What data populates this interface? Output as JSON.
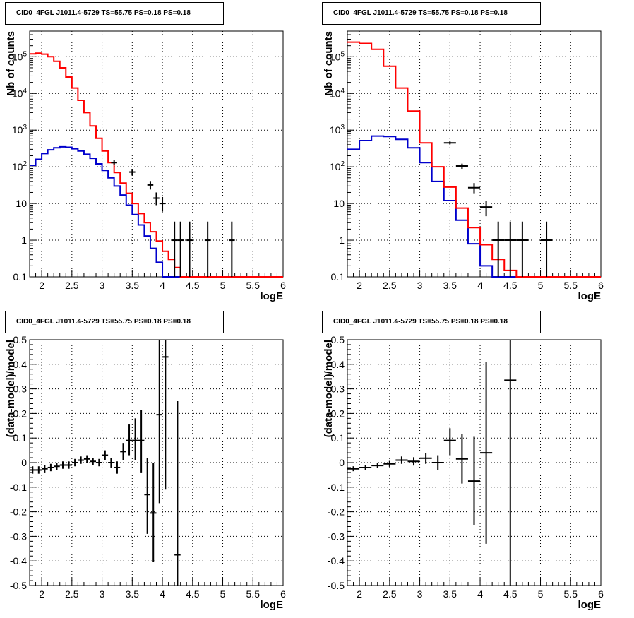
{
  "colors": {
    "data": "#000000",
    "total_model": "#ff0000",
    "component_model": "#0000cc",
    "grid": "#000000"
  },
  "chart_data": [
    {
      "type": "histogram",
      "title": "CID0_4FGL J1011.4-5729 TS=55.75 PS=0.18 PS=0.18",
      "xlabel": "logE",
      "ylabel": "Nb of counts",
      "xlim": [
        1.8,
        6.0
      ],
      "ylim": [
        0.1,
        500000
      ],
      "yscale": "log",
      "grid": true,
      "x_ticks": [
        "2",
        "2.5",
        "3",
        "3.5",
        "4",
        "4.5",
        "5",
        "5.5",
        "6"
      ],
      "y_ticks": [
        "0.1",
        "1",
        "10",
        "10^2",
        "10^3",
        "10^4",
        "10^5"
      ],
      "bin_edges": [
        1.8,
        1.9,
        2.0,
        2.1,
        2.2,
        2.3,
        2.4,
        2.5,
        2.6,
        2.7,
        2.8,
        2.9,
        3.0,
        3.1,
        3.2,
        3.3,
        3.4,
        3.5,
        3.6,
        3.7,
        3.8,
        3.9,
        4.0,
        4.1,
        4.2,
        4.3,
        4.4,
        4.5,
        4.6,
        4.7,
        4.8,
        4.9,
        5.0,
        5.1,
        5.2,
        5.3,
        5.4,
        5.5,
        5.6,
        5.7,
        5.8,
        5.9,
        6.0
      ],
      "series": [
        {
          "role": "total_model",
          "values": [
            120000,
            125000,
            118000,
            100000,
            75000,
            50000,
            28000,
            14000,
            6500,
            3000,
            1300,
            600,
            270,
            130,
            70,
            36,
            19,
            10,
            5.3,
            3.0,
            1.7,
            0.95,
            0.5,
            0.3,
            0.18,
            0.1,
            0.1,
            0.1,
            0.1,
            0.1,
            0.1,
            0.1,
            0.1,
            0.1,
            0.1,
            0.1,
            0.1,
            0.1,
            0.1,
            0.1,
            0.1,
            0.1
          ]
        },
        {
          "role": "component_model",
          "values": [
            110,
            160,
            230,
            290,
            330,
            350,
            340,
            310,
            270,
            220,
            170,
            120,
            80,
            50,
            30,
            17,
            9,
            5,
            2.6,
            1.3,
            0.6,
            0.25,
            0.1,
            0.1,
            0.1,
            0.1,
            0.1,
            0.1,
            0.1,
            0.1,
            0.1,
            0.1,
            0.1,
            0.1,
            0.1,
            0.1,
            0.1,
            0.1,
            0.1,
            0.1,
            0.1,
            0.1
          ]
        }
      ],
      "points": [
        {
          "x": 3.2,
          "y": 130,
          "xerr": 0.05,
          "ylo": 110,
          "yhi": 150
        },
        {
          "x": 3.5,
          "y": 72,
          "xerr": 0.05,
          "ylo": 58,
          "yhi": 88
        },
        {
          "x": 3.8,
          "y": 32,
          "xerr": 0.05,
          "ylo": 24,
          "yhi": 41
        },
        {
          "x": 3.9,
          "y": 14,
          "xerr": 0.05,
          "ylo": 9,
          "yhi": 20
        },
        {
          "x": 4.0,
          "y": 10,
          "xerr": 0.05,
          "ylo": 6,
          "yhi": 15
        },
        {
          "x": 4.2,
          "y": 1,
          "xerr": 0.05,
          "ylo": 0.1,
          "yhi": 3.2
        },
        {
          "x": 4.3,
          "y": 1,
          "xerr": 0.05,
          "ylo": 0.1,
          "yhi": 3.2
        },
        {
          "x": 4.45,
          "y": 1,
          "xerr": 0.05,
          "ylo": 0.1,
          "yhi": 3.2
        },
        {
          "x": 4.75,
          "y": 1,
          "xerr": 0.05,
          "ylo": 0.1,
          "yhi": 3.2
        },
        {
          "x": 5.15,
          "y": 1,
          "xerr": 0.05,
          "ylo": 0.1,
          "yhi": 3.2
        }
      ]
    },
    {
      "type": "histogram",
      "title": "CID0_4FGL J1011.4-5729 TS=55.75 PS=0.18 PS=0.18",
      "xlabel": "logE",
      "ylabel": "Nb of counts",
      "xlim": [
        1.8,
        6.0
      ],
      "ylim": [
        0.1,
        500000
      ],
      "yscale": "log",
      "grid": true,
      "x_ticks": [
        "2",
        "2.5",
        "3",
        "3.5",
        "4",
        "4.5",
        "5",
        "5.5",
        "6"
      ],
      "y_ticks": [
        "0.1",
        "1",
        "10",
        "10^2",
        "10^3",
        "10^4",
        "10^5"
      ],
      "bin_edges": [
        1.8,
        2.0,
        2.2,
        2.4,
        2.6,
        2.8,
        3.0,
        3.2,
        3.4,
        3.6,
        3.8,
        4.0,
        4.2,
        4.4,
        4.6,
        4.8,
        5.0,
        5.2,
        5.4,
        5.6,
        5.8,
        6.0
      ],
      "series": [
        {
          "role": "total_model",
          "values": [
            250000,
            230000,
            160000,
            55000,
            14000,
            3300,
            450,
            100,
            28,
            7.5,
            2.2,
            0.75,
            0.3,
            0.15,
            0.1,
            0.1,
            0.1,
            0.1,
            0.1,
            0.1,
            0.1
          ]
        },
        {
          "role": "component_model",
          "values": [
            300,
            520,
            690,
            670,
            560,
            330,
            130,
            40,
            12,
            3.5,
            0.8,
            0.2,
            0.1,
            0.1,
            0.1,
            0.1,
            0.1,
            0.1,
            0.1,
            0.1,
            0.1
          ]
        }
      ],
      "points": [
        {
          "x": 3.5,
          "y": 450,
          "xerr": 0.1,
          "ylo": 410,
          "yhi": 490
        },
        {
          "x": 3.7,
          "y": 105,
          "xerr": 0.1,
          "ylo": 88,
          "yhi": 122
        },
        {
          "x": 3.9,
          "y": 27,
          "xerr": 0.1,
          "ylo": 19,
          "yhi": 36
        },
        {
          "x": 4.1,
          "y": 8,
          "xerr": 0.1,
          "ylo": 4.5,
          "yhi": 12
        },
        {
          "x": 4.3,
          "y": 1,
          "xerr": 0.1,
          "ylo": 0.1,
          "yhi": 3.2
        },
        {
          "x": 4.5,
          "y": 1,
          "xerr": 0.1,
          "ylo": 0.1,
          "yhi": 3.2
        },
        {
          "x": 4.7,
          "y": 1,
          "xerr": 0.1,
          "ylo": 0.1,
          "yhi": 3.2
        },
        {
          "x": 5.1,
          "y": 1,
          "xerr": 0.1,
          "ylo": 0.1,
          "yhi": 3.2
        }
      ]
    },
    {
      "type": "scatter",
      "title": "CID0_4FGL J1011.4-5729 TS=55.75 PS=0.18 PS=0.18",
      "xlabel": "logE",
      "ylabel": "(data-model)/model",
      "xlim": [
        1.8,
        6.0
      ],
      "ylim": [
        -0.5,
        0.5
      ],
      "yscale": "linear",
      "grid": true,
      "x_ticks": [
        "2",
        "2.5",
        "3",
        "3.5",
        "4",
        "4.5",
        "5",
        "5.5",
        "6"
      ],
      "y_ticks": [
        "-0.5",
        "-0.4",
        "-0.3",
        "-0.2",
        "-0.1",
        "0",
        "0.1",
        "0.2",
        "0.3",
        "0.4",
        "0.5"
      ],
      "points": [
        {
          "x": 1.85,
          "y": -0.03,
          "xerr": 0.05,
          "ylo": -0.045,
          "yhi": -0.015
        },
        {
          "x": 1.95,
          "y": -0.03,
          "xerr": 0.05,
          "ylo": -0.045,
          "yhi": -0.015
        },
        {
          "x": 2.05,
          "y": -0.025,
          "xerr": 0.05,
          "ylo": -0.04,
          "yhi": -0.01
        },
        {
          "x": 2.15,
          "y": -0.02,
          "xerr": 0.05,
          "ylo": -0.035,
          "yhi": -0.005
        },
        {
          "x": 2.25,
          "y": -0.015,
          "xerr": 0.05,
          "ylo": -0.03,
          "yhi": 0.0
        },
        {
          "x": 2.35,
          "y": -0.01,
          "xerr": 0.05,
          "ylo": -0.025,
          "yhi": 0.005
        },
        {
          "x": 2.45,
          "y": -0.01,
          "xerr": 0.05,
          "ylo": -0.025,
          "yhi": 0.005
        },
        {
          "x": 2.55,
          "y": 0.0,
          "xerr": 0.05,
          "ylo": -0.015,
          "yhi": 0.015
        },
        {
          "x": 2.65,
          "y": 0.01,
          "xerr": 0.05,
          "ylo": -0.005,
          "yhi": 0.025
        },
        {
          "x": 2.75,
          "y": 0.015,
          "xerr": 0.05,
          "ylo": 0.0,
          "yhi": 0.03
        },
        {
          "x": 2.85,
          "y": 0.005,
          "xerr": 0.05,
          "ylo": -0.01,
          "yhi": 0.02
        },
        {
          "x": 2.95,
          "y": 0.0,
          "xerr": 0.05,
          "ylo": -0.015,
          "yhi": 0.015
        },
        {
          "x": 3.05,
          "y": 0.03,
          "xerr": 0.05,
          "ylo": 0.01,
          "yhi": 0.05
        },
        {
          "x": 3.15,
          "y": 0.0,
          "xerr": 0.05,
          "ylo": -0.02,
          "yhi": 0.02
        },
        {
          "x": 3.25,
          "y": -0.02,
          "xerr": 0.05,
          "ylo": -0.045,
          "yhi": 0.005
        },
        {
          "x": 3.35,
          "y": 0.045,
          "xerr": 0.05,
          "ylo": 0.01,
          "yhi": 0.08
        },
        {
          "x": 3.45,
          "y": 0.09,
          "xerr": 0.05,
          "ylo": 0.03,
          "yhi": 0.155
        },
        {
          "x": 3.55,
          "y": 0.09,
          "xerr": 0.05,
          "ylo": 0.01,
          "yhi": 0.18
        },
        {
          "x": 3.65,
          "y": 0.09,
          "xerr": 0.05,
          "ylo": -0.04,
          "yhi": 0.215
        },
        {
          "x": 3.75,
          "y": -0.13,
          "xerr": 0.05,
          "ylo": -0.29,
          "yhi": 0.02
        },
        {
          "x": 3.85,
          "y": -0.205,
          "xerr": 0.05,
          "ylo": -0.405,
          "yhi": 0.0
        },
        {
          "x": 3.95,
          "y": 0.195,
          "xerr": 0.05,
          "ylo": -0.165,
          "yhi": 0.5
        },
        {
          "x": 4.05,
          "y": 0.43,
          "xerr": 0.05,
          "ylo": -0.11,
          "yhi": 0.5
        },
        {
          "x": 4.25,
          "y": -0.375,
          "xerr": 0.05,
          "ylo": -0.5,
          "yhi": 0.25
        }
      ]
    },
    {
      "type": "scatter",
      "title": "CID0_4FGL J1011.4-5729 TS=55.75 PS=0.18 PS=0.18",
      "xlabel": "logE",
      "ylabel": "(data-model)/model",
      "xlim": [
        1.8,
        6.0
      ],
      "ylim": [
        -0.5,
        0.5
      ],
      "yscale": "linear",
      "grid": true,
      "x_ticks": [
        "2",
        "2.5",
        "3",
        "3.5",
        "4",
        "4.5",
        "5",
        "5.5",
        "6"
      ],
      "y_ticks": [
        "-0.5",
        "-0.4",
        "-0.3",
        "-0.2",
        "-0.1",
        "0",
        "0.1",
        "0.2",
        "0.3",
        "0.4",
        "0.5"
      ],
      "points": [
        {
          "x": 1.9,
          "y": -0.025,
          "xerr": 0.1,
          "ylo": -0.035,
          "yhi": -0.015
        },
        {
          "x": 2.1,
          "y": -0.02,
          "xerr": 0.1,
          "ylo": -0.03,
          "yhi": -0.01
        },
        {
          "x": 2.3,
          "y": -0.012,
          "xerr": 0.1,
          "ylo": -0.022,
          "yhi": -0.002
        },
        {
          "x": 2.5,
          "y": -0.005,
          "xerr": 0.1,
          "ylo": -0.017,
          "yhi": 0.007
        },
        {
          "x": 2.7,
          "y": 0.01,
          "xerr": 0.1,
          "ylo": -0.005,
          "yhi": 0.025
        },
        {
          "x": 2.9,
          "y": 0.005,
          "xerr": 0.1,
          "ylo": -0.012,
          "yhi": 0.022
        },
        {
          "x": 3.1,
          "y": 0.018,
          "xerr": 0.1,
          "ylo": -0.005,
          "yhi": 0.04
        },
        {
          "x": 3.3,
          "y": 0.0,
          "xerr": 0.1,
          "ylo": -0.03,
          "yhi": 0.03
        },
        {
          "x": 3.5,
          "y": 0.09,
          "xerr": 0.1,
          "ylo": 0.03,
          "yhi": 0.14
        },
        {
          "x": 3.7,
          "y": 0.015,
          "xerr": 0.1,
          "ylo": -0.085,
          "yhi": 0.115
        },
        {
          "x": 3.9,
          "y": -0.075,
          "xerr": 0.1,
          "ylo": -0.255,
          "yhi": 0.105
        },
        {
          "x": 4.1,
          "y": 0.04,
          "xerr": 0.1,
          "ylo": -0.33,
          "yhi": 0.41
        },
        {
          "x": 4.5,
          "y": 0.335,
          "xerr": 0.1,
          "ylo": -0.5,
          "yhi": 0.5
        }
      ]
    }
  ]
}
